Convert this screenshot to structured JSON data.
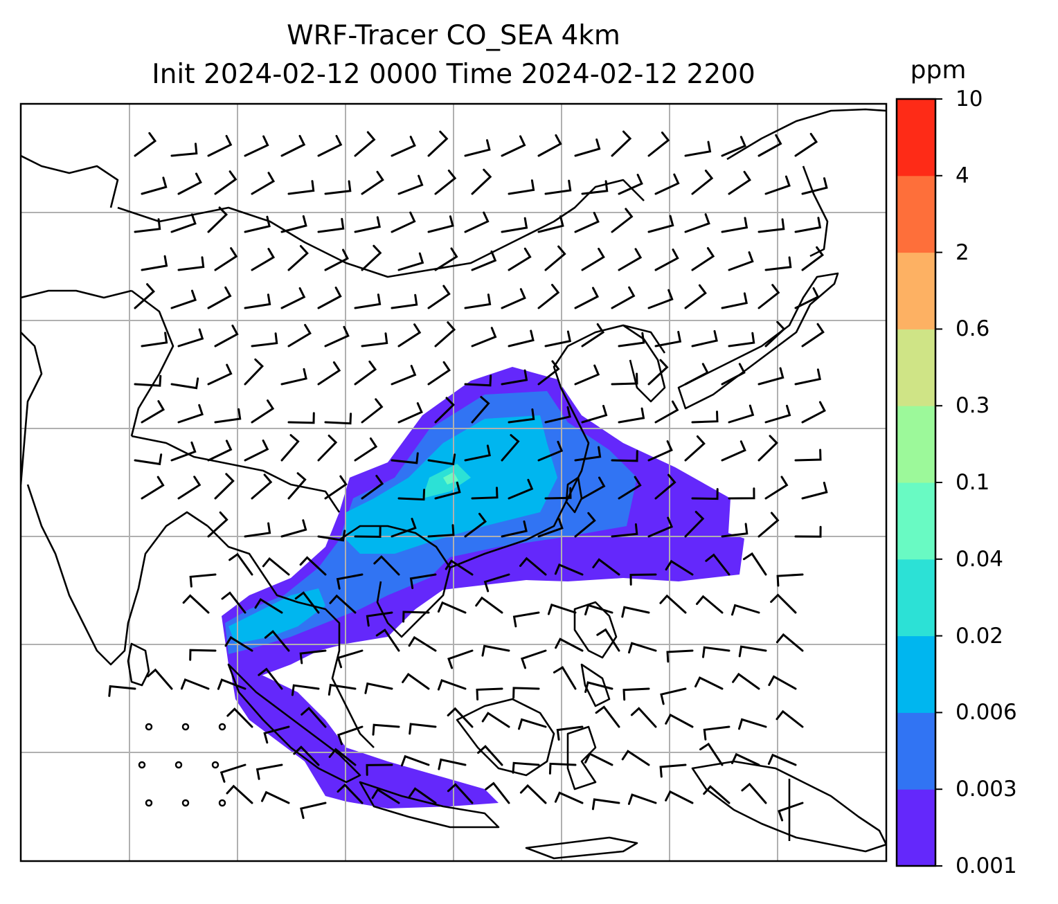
{
  "title": {
    "line1": "WRF-Tracer CO_SEA 4km",
    "line2": "Init 2024-02-12 0000 Time 2024-02-12 2200"
  },
  "colorbar": {
    "unit": "ppm",
    "ticks": [
      "0.001",
      "0.003",
      "0.006",
      "0.02",
      "0.04",
      "0.1",
      "0.3",
      "0.6",
      "2",
      "4",
      "10"
    ],
    "colors": [
      "#6428fb",
      "#3174f3",
      "#00b6ef",
      "#2ce1d6",
      "#69fac3",
      "#9cf99a",
      "#cfe486",
      "#fdb163",
      "#fe6f3a",
      "#fe2b17"
    ]
  },
  "colors": {
    "coastline": "#000000",
    "grid": "#b0b0b0",
    "wind_barb": "#000000"
  },
  "map": {
    "features": [
      "coastlines",
      "country-borders",
      "lat-lon-grid",
      "wind-barbs",
      "co-tracer-concentration"
    ]
  }
}
